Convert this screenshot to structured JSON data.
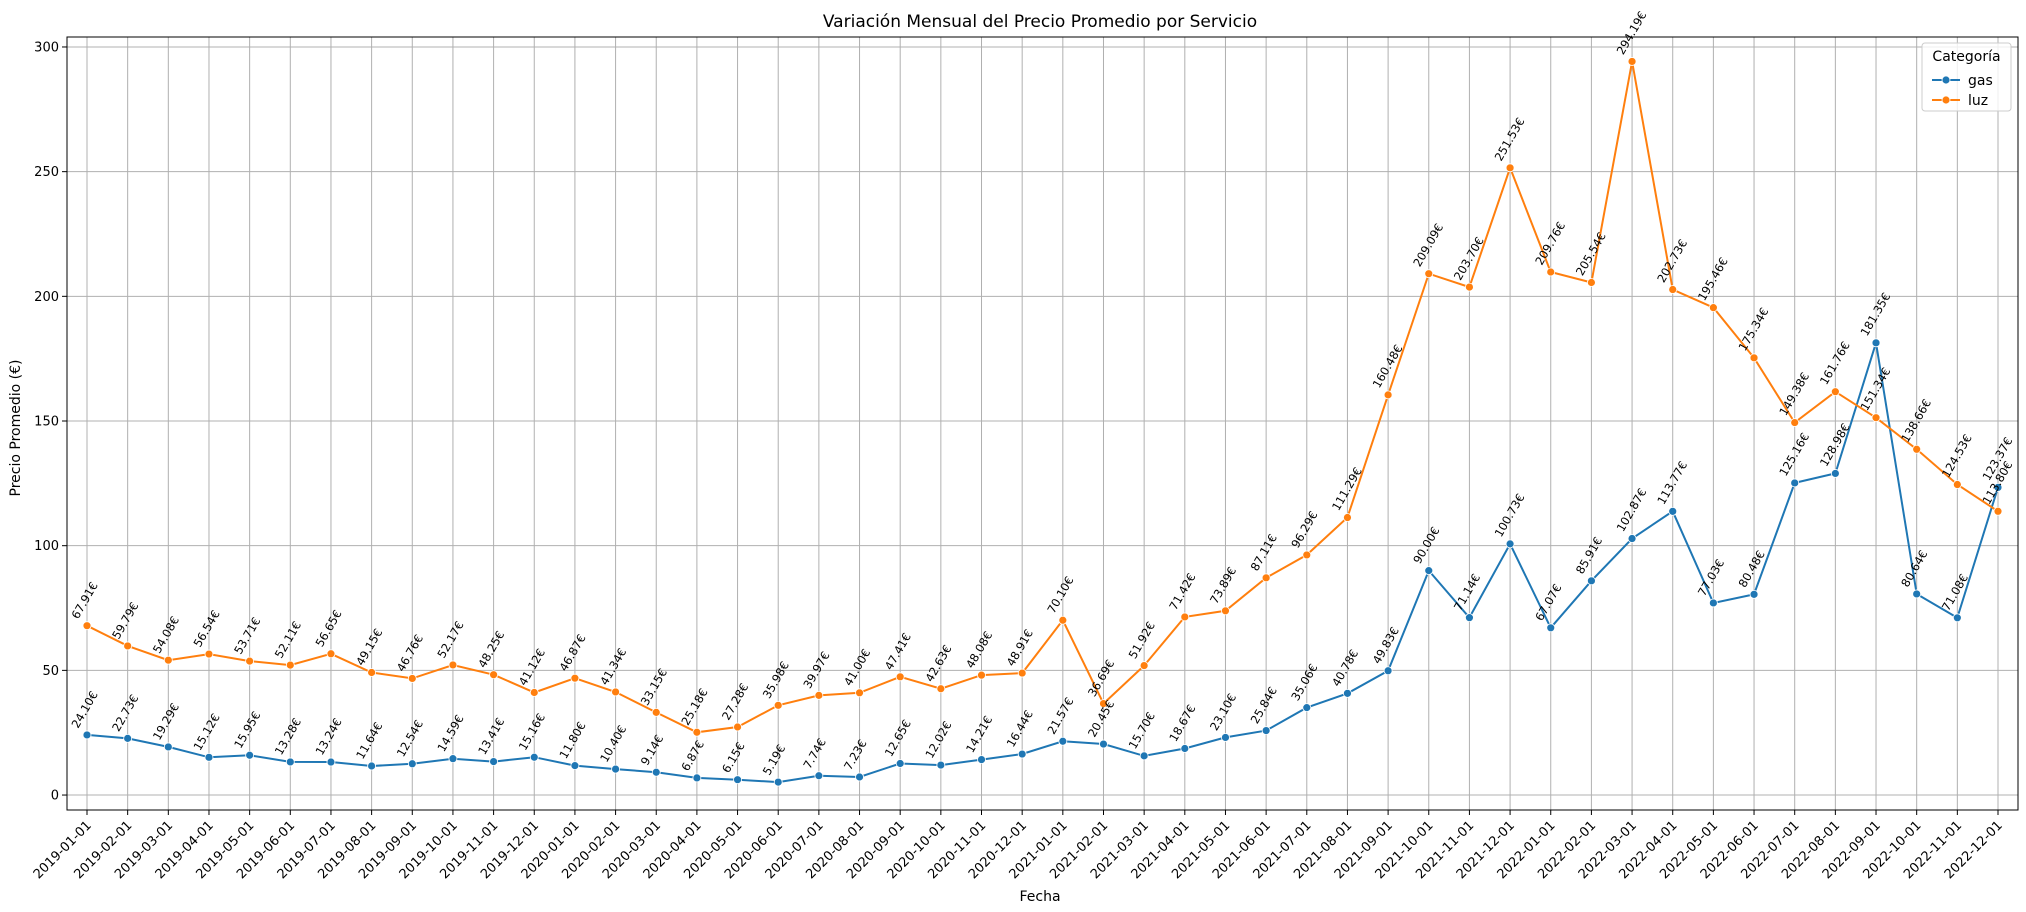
{
  "chart_data": {
    "type": "line",
    "title": "Variación Mensual del Precio Promedio por Servicio",
    "xlabel": "Fecha",
    "ylabel": "Precio Promedio (€)",
    "ylim": [
      -6,
      304
    ],
    "yticks": [
      0,
      50,
      100,
      150,
      200,
      250,
      300
    ],
    "grid": true,
    "legend": {
      "title": "Categoría",
      "placement": "top-right"
    },
    "value_suffix": "€",
    "x": [
      "2019-01-01",
      "2019-02-01",
      "2019-03-01",
      "2019-04-01",
      "2019-05-01",
      "2019-06-01",
      "2019-07-01",
      "2019-08-01",
      "2019-09-01",
      "2019-10-01",
      "2019-11-01",
      "2019-12-01",
      "2020-01-01",
      "2020-02-01",
      "2020-03-01",
      "2020-04-01",
      "2020-05-01",
      "2020-06-01",
      "2020-07-01",
      "2020-08-01",
      "2020-09-01",
      "2020-10-01",
      "2020-11-01",
      "2020-12-01",
      "2021-01-01",
      "2021-02-01",
      "2021-03-01",
      "2021-04-01",
      "2021-05-01",
      "2021-06-01",
      "2021-07-01",
      "2021-08-01",
      "2021-09-01",
      "2021-10-01",
      "2021-11-01",
      "2021-12-01",
      "2022-01-01",
      "2022-02-01",
      "2022-03-01",
      "2022-04-01",
      "2022-05-01",
      "2022-06-01",
      "2022-07-01",
      "2022-08-01",
      "2022-09-01",
      "2022-10-01",
      "2022-11-01",
      "2022-12-01"
    ],
    "series": [
      {
        "name": "gas",
        "color": "#1f77b4",
        "values": [
          24.1,
          22.73,
          19.29,
          15.12,
          15.95,
          13.28,
          13.24,
          11.64,
          12.54,
          14.59,
          13.41,
          15.16,
          11.8,
          10.4,
          9.14,
          6.87,
          6.15,
          5.19,
          7.74,
          7.23,
          12.65,
          12.02,
          14.21,
          16.44,
          21.57,
          20.45,
          15.7,
          18.67,
          23.1,
          25.84,
          35.06,
          40.78,
          49.83,
          90.0,
          71.14,
          100.73,
          67.07,
          85.91,
          102.87,
          113.77,
          77.03,
          80.48,
          125.16,
          128.98,
          181.35,
          80.64,
          71.08,
          123.37
        ]
      },
      {
        "name": "luz",
        "color": "#ff7f0e",
        "values": [
          67.91,
          59.79,
          54.08,
          56.54,
          53.71,
          52.11,
          56.65,
          49.15,
          46.76,
          52.17,
          48.25,
          41.12,
          46.87,
          41.34,
          33.15,
          25.18,
          27.28,
          35.98,
          39.97,
          41.0,
          47.41,
          42.63,
          48.08,
          48.91,
          70.1,
          36.69,
          51.92,
          71.42,
          73.89,
          87.11,
          96.29,
          111.29,
          160.48,
          209.09,
          203.7,
          251.53,
          209.76,
          205.54,
          294.19,
          202.73,
          195.46,
          175.34,
          149.38,
          161.76,
          151.34,
          138.66,
          124.53,
          113.8
        ]
      }
    ]
  }
}
